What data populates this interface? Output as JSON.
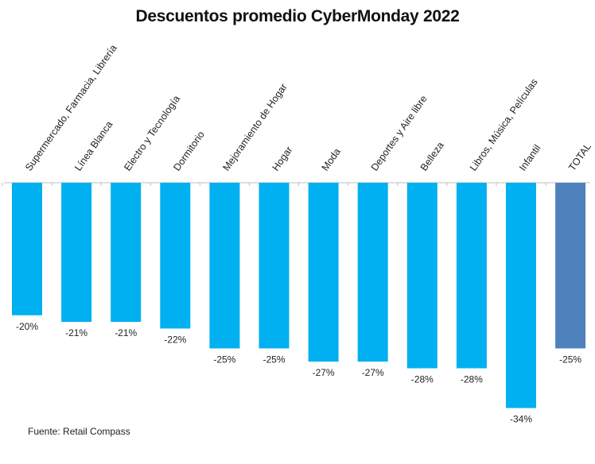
{
  "chart_data": {
    "type": "bar",
    "title": "Descuentos promedio CyberMonday 2022",
    "categories": [
      "Supermercado, Farmacia, Librería",
      "Línea Blanca",
      "Electro y Tecnología",
      "Dormitorio",
      "Mejoramiento de Hogar",
      "Hogar",
      "Moda",
      "Deportes y Aire libre",
      "Belleza",
      "Libros, Música, Películas",
      "Infantil",
      "TOTAL"
    ],
    "values": [
      -20,
      -21,
      -21,
      -22,
      -25,
      -25,
      -27,
      -27,
      -28,
      -28,
      -34,
      -25
    ],
    "value_labels": [
      "-20%",
      "-21%",
      "-21%",
      "-22%",
      "-25%",
      "-25%",
      "-27%",
      "-27%",
      "-28%",
      "-28%",
      "-34%",
      "-25%"
    ],
    "highlight_category": "TOTAL",
    "colors": {
      "bar": "#00B0F0",
      "total_bar": "#4F81BD",
      "axis": "#BFBFBF",
      "text": "#222222"
    },
    "legend": "none",
    "grid": false,
    "category_labels_position": "top, rotated",
    "xlabel": "",
    "ylabel": ""
  },
  "footer": {
    "source": "Fuente: Retail Compass"
  }
}
